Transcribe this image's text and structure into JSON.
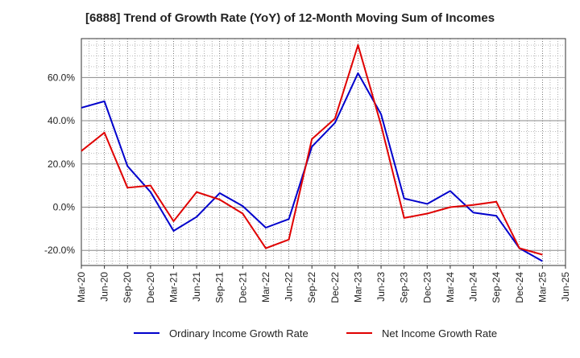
{
  "chart_data": {
    "type": "line",
    "title": "[6888]  Trend of Growth Rate (YoY) of 12-Month Moving Sum of Incomes",
    "x": [
      "Mar-20",
      "Jun-20",
      "Sep-20",
      "Dec-20",
      "Mar-21",
      "Jun-21",
      "Sep-21",
      "Dec-21",
      "Mar-22",
      "Jun-22",
      "Sep-22",
      "Dec-22",
      "Mar-23",
      "Jun-23",
      "Sep-23",
      "Dec-23",
      "Mar-24",
      "Jun-24",
      "Sep-24",
      "Dec-24",
      "Mar-25",
      "Jun-25"
    ],
    "ylim": [
      -27,
      78
    ],
    "yticks": [
      -20,
      0,
      20,
      40,
      60
    ],
    "ytick_labels": [
      "-20.0%",
      "0.0%",
      "20.0%",
      "40.0%",
      "60.0%"
    ],
    "grid": true,
    "legend_position": "bottom",
    "series": [
      {
        "name": "Ordinary Income Growth Rate",
        "color": "#0000cc",
        "values": [
          46,
          49,
          19,
          7,
          -11,
          -4.5,
          6.5,
          0.5,
          -9.5,
          -5.5,
          28,
          39,
          62,
          43,
          4,
          1.5,
          7.5,
          -2.5,
          -4,
          -19,
          -25,
          null
        ]
      },
      {
        "name": "Net Income Growth Rate",
        "color": "#e00000",
        "values": [
          26,
          34.5,
          9,
          10,
          -6.5,
          7,
          3.5,
          -3,
          -19,
          -15,
          31.5,
          41,
          75,
          38,
          -5,
          -3,
          0,
          1,
          2.5,
          -19,
          -22,
          null
        ]
      }
    ]
  }
}
